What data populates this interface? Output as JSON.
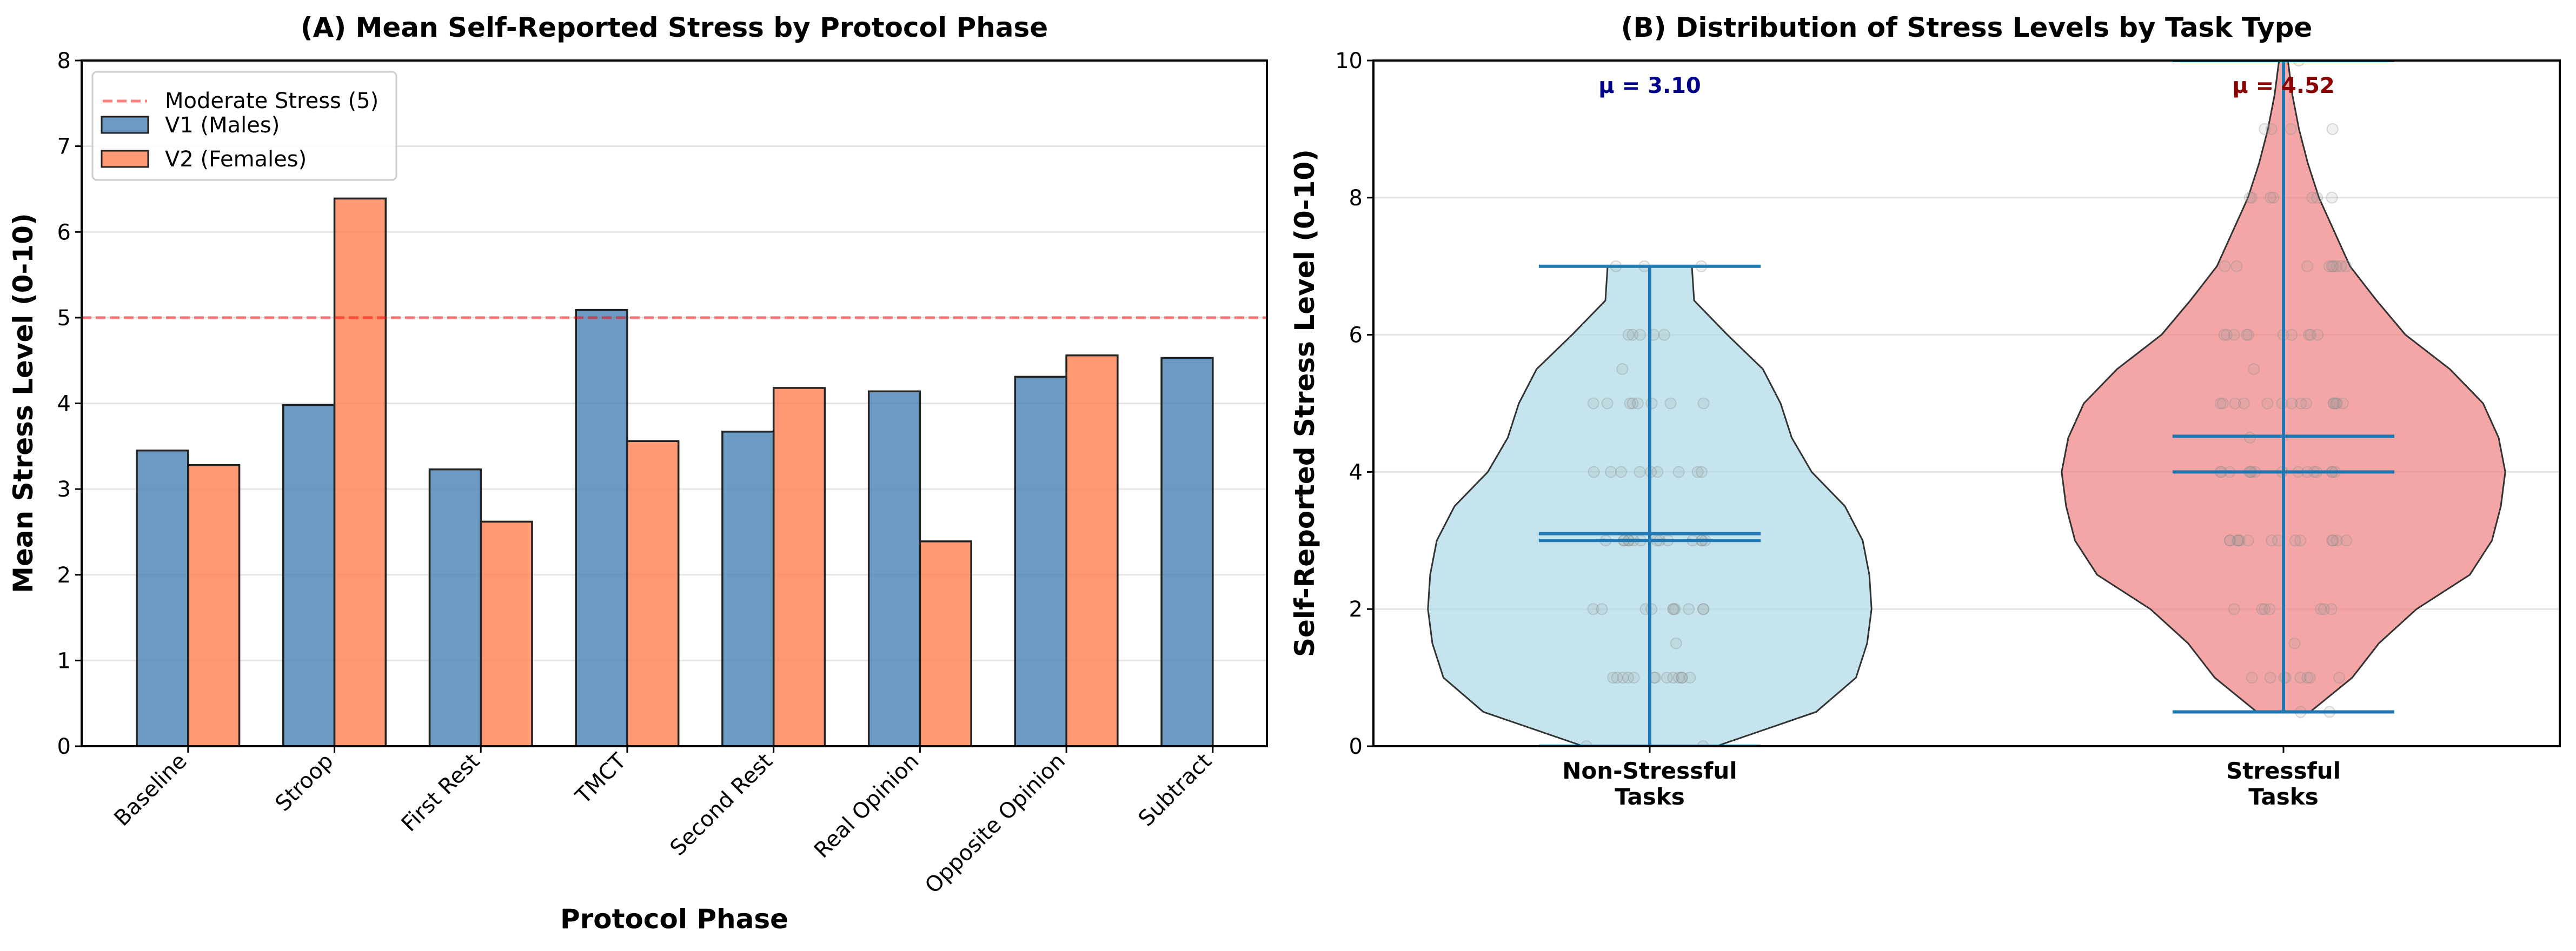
{
  "chart_data": [
    {
      "type": "bar",
      "title": "(A) Mean Self-Reported Stress by Protocol Phase",
      "xlabel": "Protocol Phase",
      "ylabel": "Mean Stress Level (0-10)",
      "ylim": [
        0,
        8
      ],
      "yticks": [
        "0",
        "1",
        "2",
        "3",
        "4",
        "5",
        "6",
        "7",
        "8"
      ],
      "grid": "horizontal",
      "legend_placement": "upper-left",
      "categories": [
        "Baseline",
        "Stroop",
        "First Rest",
        "TMCT",
        "Second Rest",
        "Real Opinion",
        "Opposite Opinion",
        "Subtract"
      ],
      "series": [
        {
          "name": "V1 (Males)",
          "color": "#4682b4",
          "values": [
            3.45,
            3.98,
            3.23,
            5.09,
            3.67,
            4.14,
            4.31,
            4.53
          ]
        },
        {
          "name": "V2 (Females)",
          "color": "#ff7f50",
          "values": [
            3.28,
            6.39,
            2.62,
            3.56,
            4.18,
            2.39,
            4.56,
            null
          ]
        }
      ],
      "reference_line": {
        "label": "Moderate Stress (5)",
        "y": 5,
        "color": "#ff0000",
        "style": "dashed"
      }
    },
    {
      "type": "violin",
      "title": "(B) Distribution of Stress Levels by Task Type",
      "xlabel": "",
      "ylabel": "Self-Reported Stress Level (0-10)",
      "ylim": [
        0,
        10
      ],
      "yticks": [
        "0",
        "2",
        "4",
        "6",
        "8",
        "10"
      ],
      "grid": "horizontal",
      "groups": [
        {
          "label": "Non-Stressful\nTasks",
          "label_lines": [
            "Non-Stressful",
            "Tasks"
          ],
          "color": "#add8e6",
          "min": 0,
          "max": 7,
          "mean": 3.1,
          "median": 3.0,
          "mean_annotation": "μ = 3.10",
          "annotation_color": "#00008b",
          "density_levels": [
            0,
            0.5,
            1,
            1.5,
            2,
            2.5,
            3,
            3.5,
            4,
            4.5,
            5,
            5.5,
            6,
            6.5,
            7
          ],
          "density": [
            0.3,
            0.75,
            0.93,
            0.98,
            1.0,
            0.99,
            0.96,
            0.88,
            0.73,
            0.64,
            0.59,
            0.51,
            0.35,
            0.2,
            0.19
          ],
          "points": [
            0,
            0,
            1,
            1,
            1,
            1,
            1,
            1,
            1,
            1,
            1,
            1,
            1,
            1,
            1,
            1.5,
            2,
            2,
            2,
            2,
            2,
            2,
            2,
            2,
            2,
            2,
            3,
            3,
            3,
            3,
            3,
            3,
            3,
            3,
            3,
            3,
            3,
            3,
            3,
            3,
            4,
            4,
            4,
            4,
            4,
            4,
            4,
            4,
            4,
            5,
            5,
            5,
            5,
            5,
            5,
            5,
            5,
            5.5,
            6,
            6,
            6,
            6,
            6,
            7,
            7,
            7
          ]
        },
        {
          "label": "Stressful\nTasks",
          "label_lines": [
            "Stressful",
            "Tasks"
          ],
          "color": "#f08080",
          "min": 0.5,
          "max": 10,
          "mean": 4.52,
          "median": 4.0,
          "mean_annotation": "μ = 4.52",
          "annotation_color": "#8b0000",
          "density_levels": [
            0.5,
            1,
            1.5,
            2,
            2.5,
            3,
            3.5,
            4,
            4.5,
            5,
            5.5,
            6,
            6.5,
            7,
            7.5,
            8,
            8.5,
            9,
            9.5,
            10
          ],
          "density": [
            0.12,
            0.31,
            0.43,
            0.6,
            0.84,
            0.94,
            0.98,
            1.0,
            0.97,
            0.9,
            0.75,
            0.55,
            0.42,
            0.3,
            0.23,
            0.16,
            0.11,
            0.07,
            0.04,
            0.02
          ],
          "points": [
            0.5,
            0.5,
            1,
            1,
            1,
            1,
            1,
            1,
            1,
            1,
            1.5,
            2,
            2,
            2,
            2,
            2,
            2,
            2,
            3,
            3,
            3,
            3,
            3,
            3,
            3,
            3,
            3,
            3,
            3,
            3,
            3,
            3,
            4,
            4,
            4,
            4,
            4,
            4,
            4,
            4,
            4,
            4,
            4,
            4,
            4,
            4,
            4,
            4.5,
            5,
            5,
            5,
            5,
            5,
            5,
            5,
            5,
            5,
            5,
            5,
            5,
            5,
            5,
            5.5,
            6,
            6,
            6,
            6,
            6,
            6,
            6,
            6,
            6,
            6,
            7,
            7,
            7,
            7,
            7,
            7,
            7,
            7,
            7,
            8,
            8,
            8,
            8,
            8,
            8,
            8,
            9,
            9,
            9,
            9,
            10
          ]
        }
      ],
      "line_color": "#1f77b4"
    }
  ]
}
